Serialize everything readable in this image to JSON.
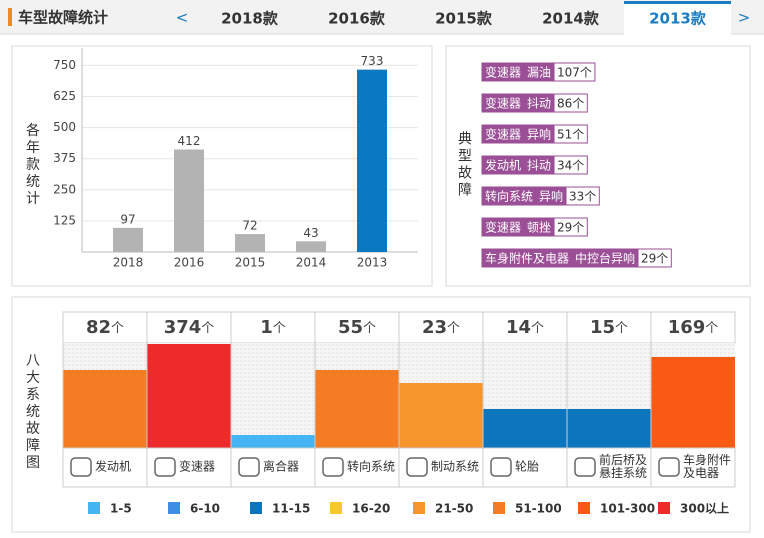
{
  "header": {
    "title": "车型故障统计",
    "prev": "<",
    "next": ">",
    "tabs": [
      "2018款",
      "2016款",
      "2015款",
      "2014款",
      "2013款"
    ],
    "active_tab": 4
  },
  "chart_data": [
    {
      "type": "bar",
      "y_label": "各年款统计",
      "categories": [
        "2018",
        "2016",
        "2015",
        "2014",
        "2013"
      ],
      "values": [
        97,
        412,
        72,
        43,
        733
      ],
      "colors": [
        "#b3b3b3",
        "#b3b3b3",
        "#b3b3b3",
        "#b3b3b3",
        "#0b78c2"
      ],
      "ylim": [
        0,
        820
      ],
      "yticks": [
        125,
        250,
        375,
        500,
        625,
        750
      ],
      "grid": true
    },
    {
      "type": "level-bar",
      "y_label": "八大系统故障图",
      "categories": [
        [
          "发动机"
        ],
        [
          "变速器"
        ],
        [
          "离合器"
        ],
        [
          "转向系统"
        ],
        [
          "制动系统"
        ],
        [
          "轮胎"
        ],
        [
          "前后桥及",
          "悬挂系统"
        ],
        [
          "车身附件",
          "及电器"
        ]
      ],
      "values": [
        82,
        374,
        1,
        55,
        23,
        14,
        15,
        169
      ],
      "unit": "个",
      "colors": [
        "#f47c22",
        "#ee2a2a",
        "#44b4f2",
        "#f47c22",
        "#f5952c",
        "#0b75bd",
        "#0b75bd",
        "#fb5a14"
      ],
      "legend": [
        {
          "label": "1-5",
          "color": "#44b4f2"
        },
        {
          "label": "6-10",
          "color": "#3e8ee6"
        },
        {
          "label": "11-15",
          "color": "#0b75bd"
        },
        {
          "label": "16-20",
          "color": "#f8c72b"
        },
        {
          "label": "21-50",
          "color": "#f5952c"
        },
        {
          "label": "51-100",
          "color": "#f47c22"
        },
        {
          "label": "101-300",
          "color": "#fb5a14"
        },
        {
          "label": "300以上",
          "color": "#ee2a2a"
        }
      ]
    }
  ],
  "faults": {
    "label": "典型故障",
    "items": [
      [
        "变速器",
        "漏油",
        "107个"
      ],
      [
        "变速器",
        "抖动",
        "86个"
      ],
      [
        "变速器",
        "异响",
        "51个"
      ],
      [
        "发动机",
        "抖动",
        "34个"
      ],
      [
        "转向系统",
        "异响",
        "33个"
      ],
      [
        "变速器",
        "顿挫",
        "29个"
      ],
      [
        "车身附件及电器",
        "中控台异响",
        "29个"
      ]
    ]
  }
}
